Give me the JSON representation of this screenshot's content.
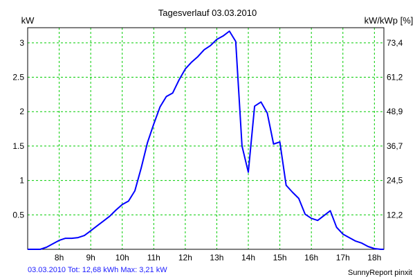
{
  "chart_data": {
    "type": "line",
    "title": "Tagesverlauf 03.03.2010",
    "left_unit": "kW",
    "right_unit": "kW/kWp [%]",
    "x_ticks": [
      "8h",
      "9h",
      "10h",
      "11h",
      "12h",
      "13h",
      "14h",
      "15h",
      "16h",
      "17h",
      "18h"
    ],
    "y_ticks": [
      "0.5",
      "1",
      "1.5",
      "2",
      "2.5",
      "3"
    ],
    "y2_ticks": [
      "12,2",
      "24,5",
      "36,7",
      "48,9",
      "61,2",
      "73,4"
    ],
    "xlim": [
      7.0,
      18.3
    ],
    "ylim": [
      0,
      3.22
    ],
    "grid": true,
    "line_color": "#0000ff",
    "grid_color": "#00cc00",
    "series": [
      {
        "x": [
          7.0,
          7.2,
          7.4,
          7.6,
          7.8,
          8.0,
          8.2,
          8.4,
          8.6,
          8.8,
          9.0,
          9.2,
          9.4,
          9.6,
          9.8,
          10.0,
          10.2,
          10.4,
          10.6,
          10.8,
          11.0,
          11.2,
          11.4,
          11.6,
          11.8,
          12.0,
          12.2,
          12.4,
          12.6,
          12.8,
          13.0,
          13.2,
          13.4,
          13.6,
          13.8,
          14.0,
          14.2,
          14.4,
          14.6,
          14.8,
          15.0,
          15.2,
          15.4,
          15.6,
          15.8,
          16.0,
          16.2,
          16.4,
          16.6,
          16.8,
          17.0,
          17.2,
          17.4,
          17.6,
          17.8,
          18.0,
          18.2,
          18.3
        ],
        "y": [
          0.0,
          0.0,
          0.0,
          0.03,
          0.08,
          0.13,
          0.16,
          0.16,
          0.17,
          0.2,
          0.27,
          0.34,
          0.41,
          0.48,
          0.57,
          0.65,
          0.7,
          0.85,
          1.18,
          1.55,
          1.82,
          2.07,
          2.22,
          2.27,
          2.46,
          2.62,
          2.72,
          2.8,
          2.9,
          2.96,
          3.05,
          3.1,
          3.17,
          3.02,
          1.5,
          1.12,
          2.08,
          2.14,
          1.98,
          1.53,
          1.56,
          0.93,
          0.83,
          0.74,
          0.51,
          0.45,
          0.42,
          0.49,
          0.56,
          0.32,
          0.22,
          0.17,
          0.12,
          0.09,
          0.04,
          0.01,
          0.0,
          0.0
        ]
      }
    ]
  },
  "footer": {
    "left": "03.03.2010 Tot: 12,68 kWh Max: 3,21 kW",
    "right": "SunnyReport pinxit"
  }
}
